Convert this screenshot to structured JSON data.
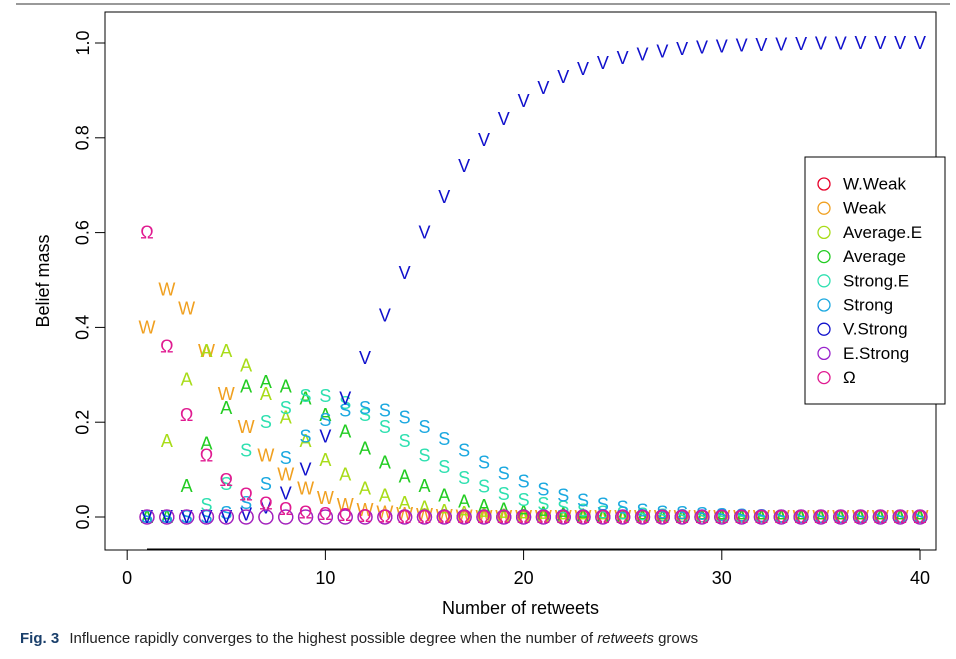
{
  "figure": {
    "caption_label": "Fig. 3",
    "caption_pre": "Influence rapidly converges to the highest possible degree when the number of",
    "caption_em": "retweets",
    "caption_post": "grows"
  },
  "chart_data": {
    "type": "scatter",
    "title": "",
    "xlabel": "Number of retweets",
    "ylabel": "Belief mass",
    "xlim": [
      1,
      40
    ],
    "ylim": [
      0,
      1
    ],
    "xticks": [
      0,
      10,
      20,
      30,
      40
    ],
    "yticks": [
      0.0,
      0.2,
      0.4,
      0.6,
      0.8,
      1.0
    ],
    "ytick_labels": [
      "0.0",
      "0.2",
      "0.4",
      "0.6",
      "0.8",
      "1.0"
    ],
    "grid": false,
    "legend_position": "right",
    "x": [
      1,
      2,
      3,
      4,
      5,
      6,
      7,
      8,
      9,
      10,
      11,
      12,
      13,
      14,
      15,
      16,
      17,
      18,
      19,
      20,
      21,
      22,
      23,
      24,
      25,
      26,
      27,
      28,
      29,
      30,
      31,
      32,
      33,
      34,
      35,
      36,
      37,
      38,
      39,
      40
    ],
    "series": [
      {
        "name": "W.Weak",
        "marker": "o",
        "color": "#e8002a",
        "values": [
          0,
          0,
          0,
          0,
          0,
          0,
          0,
          0,
          0,
          0,
          0,
          0,
          0,
          0,
          0,
          0,
          0,
          0,
          0,
          0,
          0,
          0,
          0,
          0,
          0,
          0,
          0,
          0,
          0,
          0,
          0,
          0,
          0,
          0,
          0,
          0,
          0,
          0,
          0,
          0
        ]
      },
      {
        "name": "Weak",
        "marker": "W",
        "color": "#f0a020",
        "values": [
          0.4,
          0.48,
          0.44,
          0.35,
          0.26,
          0.19,
          0.13,
          0.09,
          0.06,
          0.04,
          0.025,
          0.015,
          0.01,
          0.006,
          0.004,
          0.002,
          0.001,
          0,
          0,
          0,
          0,
          0,
          0,
          0,
          0,
          0,
          0,
          0,
          0,
          0,
          0,
          0,
          0,
          0,
          0,
          0,
          0,
          0,
          0,
          0
        ]
      },
      {
        "name": "Average.E",
        "marker": "A",
        "color": "#a8dc18",
        "values": [
          0,
          0.16,
          0.29,
          0.35,
          0.35,
          0.32,
          0.26,
          0.21,
          0.16,
          0.12,
          0.09,
          0.06,
          0.045,
          0.03,
          0.02,
          0.013,
          0.008,
          0.005,
          0.003,
          0.002,
          0.001,
          0,
          0,
          0,
          0,
          0,
          0,
          0,
          0,
          0,
          0,
          0,
          0,
          0,
          0,
          0,
          0,
          0,
          0,
          0
        ]
      },
      {
        "name": "Average",
        "marker": "A",
        "color": "#22cc22",
        "values": [
          0,
          0,
          0.065,
          0.155,
          0.23,
          0.275,
          0.285,
          0.275,
          0.25,
          0.215,
          0.18,
          0.145,
          0.115,
          0.085,
          0.065,
          0.045,
          0.033,
          0.023,
          0.016,
          0.011,
          0.007,
          0.005,
          0.003,
          0.002,
          0.001,
          0,
          0,
          0,
          0,
          0,
          0,
          0,
          0,
          0,
          0,
          0,
          0,
          0,
          0,
          0
        ]
      },
      {
        "name": "Strong.E",
        "marker": "S",
        "color": "#2ee0b0",
        "values": [
          0,
          0,
          0,
          0.025,
          0.07,
          0.14,
          0.2,
          0.23,
          0.255,
          0.255,
          0.24,
          0.215,
          0.19,
          0.16,
          0.13,
          0.105,
          0.082,
          0.064,
          0.048,
          0.036,
          0.027,
          0.02,
          0.014,
          0.01,
          0.007,
          0.005,
          0.003,
          0.002,
          0.001,
          0,
          0,
          0,
          0,
          0,
          0,
          0,
          0,
          0,
          0,
          0
        ]
      },
      {
        "name": "Strong",
        "marker": "S",
        "color": "#1aa8e0",
        "values": [
          0,
          0,
          0,
          0,
          0.008,
          0.03,
          0.07,
          0.125,
          0.17,
          0.205,
          0.225,
          0.23,
          0.225,
          0.21,
          0.19,
          0.165,
          0.14,
          0.115,
          0.092,
          0.075,
          0.058,
          0.045,
          0.035,
          0.026,
          0.02,
          0.014,
          0.01,
          0.008,
          0.006,
          0.004,
          0.003,
          0.002,
          0.001,
          0,
          0,
          0,
          0,
          0,
          0,
          0
        ]
      },
      {
        "name": "V.Strong",
        "marker": "V",
        "color": "#1010cc",
        "values": [
          0,
          0,
          0,
          0,
          0,
          0.005,
          0.02,
          0.05,
          0.1,
          0.17,
          0.25,
          0.335,
          0.425,
          0.515,
          0.6,
          0.675,
          0.74,
          0.795,
          0.84,
          0.878,
          0.905,
          0.928,
          0.945,
          0.958,
          0.968,
          0.976,
          0.982,
          0.987,
          0.99,
          0.993,
          0.995,
          0.996,
          0.997,
          0.998,
          0.999,
          0.999,
          1.0,
          1.0,
          1.0,
          1.0
        ]
      },
      {
        "name": "E.Strong",
        "marker": "o",
        "color": "#9922cc",
        "values": [
          0,
          0,
          0,
          0,
          0,
          0,
          0,
          0,
          0,
          0,
          0,
          0,
          0,
          0,
          0,
          0,
          0,
          0,
          0,
          0,
          0,
          0,
          0,
          0,
          0,
          0,
          0,
          0,
          0,
          0,
          0,
          0,
          0,
          0,
          0,
          0,
          0,
          0,
          0,
          0
        ]
      },
      {
        "name": "Ω",
        "marker": "Ω",
        "color": "#e01a90",
        "values": [
          0.6,
          0.36,
          0.215,
          0.13,
          0.078,
          0.047,
          0.028,
          0.017,
          0.01,
          0.006,
          0.004,
          0.002,
          0.001,
          0,
          0,
          0,
          0,
          0,
          0,
          0,
          0,
          0,
          0,
          0,
          0,
          0,
          0,
          0,
          0,
          0,
          0,
          0,
          0,
          0,
          0,
          0,
          0,
          0,
          0,
          0
        ]
      }
    ]
  }
}
